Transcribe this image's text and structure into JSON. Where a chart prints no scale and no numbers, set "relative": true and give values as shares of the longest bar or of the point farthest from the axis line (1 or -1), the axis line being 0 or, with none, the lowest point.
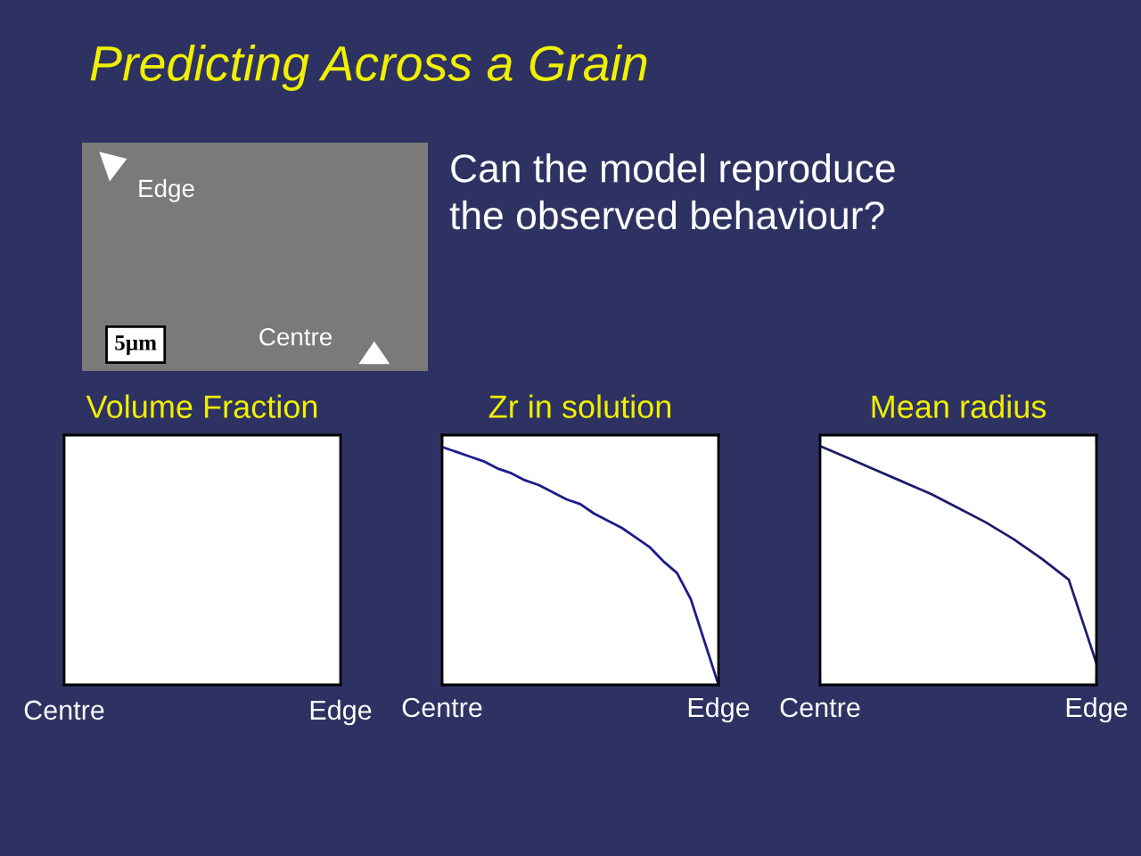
{
  "chart_data": [
    {
      "type": "other",
      "title": "Predicting Across a Grain",
      "subtitle": "Can the model reproduce\nthe observed behaviour?",
      "annotations": [
        "Edge",
        "Centre",
        "5µm"
      ]
    },
    {
      "type": "other",
      "title": "Volume Fraction",
      "annotations": [
        "Centre",
        "Edge"
      ]
    },
    {
      "type": "line",
      "title": "Zr in solution",
      "relative": true,
      "categories": [
        "Centre",
        null,
        null,
        null,
        null,
        null,
        null,
        null,
        null,
        null,
        null,
        null,
        null,
        null,
        null,
        null,
        null,
        null,
        null,
        null,
        "Edge"
      ],
      "tick_labels": "x",
      "series": [
        {
          "color": "#1c1c8c",
          "values": [
            1,
            0.98,
            0.96,
            0.94,
            0.91,
            0.89,
            0.86,
            0.84,
            0.81,
            0.78,
            0.76,
            0.72,
            0.69,
            0.66,
            0.62,
            0.58,
            0.52,
            0.47,
            0.36,
            0.18,
            0
          ]
        }
      ]
    },
    {
      "type": "line",
      "title": "Mean radius",
      "relative": true,
      "categories": [
        "Centre",
        null,
        null,
        null,
        null,
        null,
        null,
        null,
        null,
        null,
        "Edge"
      ],
      "tick_labels": "x",
      "series": [
        {
          "color": "#1c1c6c",
          "values": [
            1,
            0.95,
            0.9,
            0.85,
            0.8,
            0.74,
            0.68,
            0.61,
            0.53,
            0.44,
            0.09
          ]
        }
      ]
    }
  ]
}
